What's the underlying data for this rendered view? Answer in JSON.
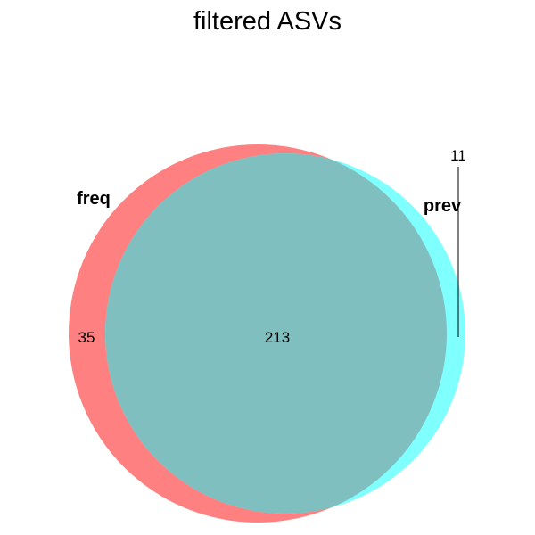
{
  "diagram": {
    "title": "filtered ASVs",
    "sets": [
      {
        "name": "freq",
        "color": "#FF8080"
      },
      {
        "name": "prev",
        "color": "#80FFFF"
      }
    ],
    "overlap_color": "#80BFBF",
    "counts": {
      "freq_only": "35",
      "both": "213",
      "prev_only": "11"
    }
  }
}
